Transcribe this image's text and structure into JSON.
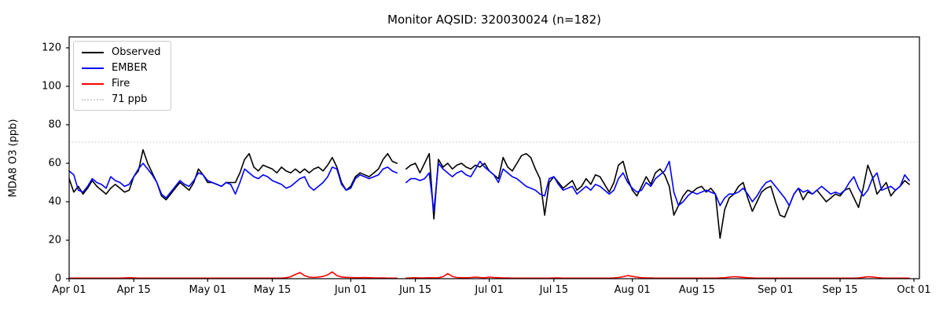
{
  "chart_data": {
    "type": "line",
    "title": "Monitor AQSID: 320030024 (n=182)",
    "ylabel": "MDA8 O3 (ppb)",
    "xlabel": "",
    "ylim": [
      0,
      125.7
    ],
    "x_days_total": 183,
    "x_start_date": "Apr 01",
    "x_end_date": "Oct 01",
    "grid": false,
    "legend_position": "upper-left",
    "threshold": {
      "label": "71 ppb",
      "value": 71,
      "color": "#d3d3d3",
      "style": "dotted"
    },
    "x_ticks": [
      {
        "label": "Apr 01",
        "day": 0
      },
      {
        "label": "Apr 15",
        "day": 14
      },
      {
        "label": "May 01",
        "day": 30
      },
      {
        "label": "May 15",
        "day": 44
      },
      {
        "label": "Jun 01",
        "day": 61
      },
      {
        "label": "Jun 15",
        "day": 75
      },
      {
        "label": "Jul 01",
        "day": 91
      },
      {
        "label": "Jul 15",
        "day": 105
      },
      {
        "label": "Aug 01",
        "day": 122
      },
      {
        "label": "Aug 15",
        "day": 136
      },
      {
        "label": "Sep 01",
        "day": 153
      },
      {
        "label": "Sep 15",
        "day": 167
      },
      {
        "label": "Oct 01",
        "day": 183
      }
    ],
    "y_ticks": [
      0,
      20,
      40,
      60,
      80,
      100,
      120
    ],
    "legend": [
      {
        "label": "Observed",
        "color": "#000000",
        "style": "solid"
      },
      {
        "label": "EMBER",
        "color": "#0000ff",
        "style": "solid"
      },
      {
        "label": "Fire",
        "color": "#ff0000",
        "style": "solid"
      },
      {
        "label": "71 ppb",
        "color": "#d3d3d3",
        "style": "dotted"
      }
    ],
    "series": [
      {
        "name": "Observed",
        "color": "#000000",
        "values": [
          52,
          45,
          48,
          44,
          47,
          51,
          48,
          46,
          44,
          47,
          49,
          47,
          45,
          46,
          53,
          56,
          67,
          60,
          55,
          50,
          43,
          41,
          44,
          47,
          50,
          48,
          46,
          50,
          57,
          54,
          50,
          50,
          49,
          48,
          50,
          50,
          50,
          55,
          62,
          65,
          58,
          56,
          59,
          58,
          57,
          55,
          58,
          56,
          55,
          57,
          55,
          57,
          55,
          57,
          58,
          56,
          59,
          63,
          58,
          50,
          46,
          48,
          53,
          55,
          54,
          53,
          55,
          57,
          62,
          65,
          61,
          60,
          null,
          57,
          59,
          60,
          55,
          60,
          65,
          31,
          62,
          58,
          60,
          57,
          59,
          60,
          58,
          57,
          59,
          58,
          60,
          56,
          54,
          52,
          63,
          58,
          56,
          60,
          64,
          65,
          63,
          57,
          52,
          33,
          50,
          53,
          50,
          47,
          49,
          51,
          46,
          48,
          52,
          49,
          54,
          53,
          49,
          45,
          50,
          59,
          61,
          52,
          46,
          43,
          48,
          53,
          49,
          55,
          57,
          54,
          48,
          33,
          38,
          43,
          46,
          45,
          47,
          48,
          45,
          47,
          44,
          21,
          36,
          42,
          44,
          48,
          50,
          42,
          35,
          40,
          45,
          47,
          48,
          40,
          33,
          32,
          38,
          44,
          47,
          41,
          45,
          44,
          46,
          43,
          40,
          42,
          44,
          43,
          46,
          47,
          42,
          37,
          47,
          59,
          53,
          44,
          47,
          50,
          43,
          46,
          48,
          51,
          49
        ]
      },
      {
        "name": "EMBER",
        "color": "#0000ff",
        "values": [
          56,
          54,
          46,
          45,
          48,
          52,
          50,
          49,
          47,
          53,
          51,
          50,
          48,
          49,
          53,
          57,
          60,
          57,
          54,
          50,
          44,
          42,
          45,
          48,
          51,
          49,
          48,
          51,
          55,
          54,
          51,
          50,
          49,
          48,
          50,
          49,
          44,
          50,
          57,
          55,
          53,
          52,
          54,
          53,
          51,
          50,
          49,
          47,
          48,
          50,
          52,
          53,
          48,
          46,
          48,
          50,
          53,
          58,
          57,
          49,
          46,
          47,
          52,
          54,
          53,
          52,
          53,
          54,
          57,
          58,
          56,
          55,
          null,
          50,
          52,
          52,
          51,
          52,
          55,
          35,
          60,
          57,
          55,
          53,
          55,
          56,
          54,
          53,
          57,
          61,
          58,
          56,
          54,
          50,
          57,
          55,
          53,
          52,
          50,
          48,
          47,
          46,
          44,
          43,
          52,
          53,
          49,
          46,
          47,
          48,
          44,
          46,
          48,
          46,
          49,
          48,
          46,
          44,
          46,
          52,
          55,
          50,
          47,
          45,
          46,
          50,
          48,
          52,
          54,
          56,
          61,
          45,
          38,
          40,
          43,
          45,
          44,
          45,
          46,
          45,
          44,
          38,
          42,
          44,
          44,
          45,
          47,
          44,
          40,
          43,
          47,
          50,
          51,
          48,
          45,
          42,
          38,
          44,
          47,
          45,
          46,
          44,
          46,
          48,
          46,
          44,
          45,
          44,
          46,
          50,
          53,
          47,
          43,
          46,
          52,
          55,
          46,
          47,
          48,
          46,
          48,
          54,
          51
        ]
      },
      {
        "name": "Fire",
        "color": "#ff0000",
        "values": [
          0.3,
          0.3,
          0.3,
          0.3,
          0.3,
          0.3,
          0.3,
          0.3,
          0.3,
          0.3,
          0.3,
          0.3,
          0.4,
          0.5,
          0.4,
          0.3,
          0.3,
          0.3,
          0.3,
          0.3,
          0.3,
          0.3,
          0.3,
          0.3,
          0.3,
          0.3,
          0.3,
          0.3,
          0.3,
          0.3,
          0.3,
          0.3,
          0.3,
          0.3,
          0.3,
          0.3,
          0.3,
          0.3,
          0.3,
          0.3,
          0.3,
          0.3,
          0.3,
          0.3,
          0.3,
          0.3,
          0.3,
          0.5,
          1.0,
          2.2,
          3.2,
          1.6,
          0.8,
          0.6,
          0.8,
          1.2,
          2.0,
          3.5,
          1.6,
          0.9,
          0.7,
          0.6,
          0.5,
          0.5,
          0.6,
          0.5,
          0.4,
          0.4,
          0.4,
          0.3,
          0.3,
          0.3,
          null,
          0.3,
          0.4,
          0.5,
          0.4,
          0.4,
          0.5,
          0.4,
          0.5,
          1.0,
          2.6,
          1.2,
          0.6,
          0.5,
          0.5,
          0.6,
          0.8,
          0.6,
          0.5,
          0.8,
          0.6,
          0.5,
          0.4,
          0.4,
          0.3,
          0.3,
          0.3,
          0.3,
          0.3,
          0.3,
          0.3,
          0.3,
          0.3,
          0.4,
          0.4,
          0.3,
          0.3,
          0.3,
          0.3,
          0.3,
          0.3,
          0.3,
          0.3,
          0.3,
          0.3,
          0.3,
          0.4,
          0.6,
          1.0,
          1.6,
          1.2,
          0.8,
          0.5,
          0.4,
          0.4,
          0.3,
          0.3,
          0.3,
          0.3,
          0.3,
          0.3,
          0.3,
          0.3,
          0.3,
          0.3,
          0.3,
          0.3,
          0.3,
          0.3,
          0.4,
          0.5,
          0.8,
          1.0,
          0.9,
          0.7,
          0.5,
          0.4,
          0.3,
          0.3,
          0.3,
          0.3,
          0.3,
          0.3,
          0.3,
          0.3,
          0.3,
          0.3,
          0.3,
          0.3,
          0.3,
          0.3,
          0.3,
          0.3,
          0.3,
          0.3,
          0.3,
          0.3,
          0.3,
          0.3,
          0.4,
          0.7,
          1.0,
          0.9,
          0.6,
          0.4,
          0.3,
          0.3,
          0.3,
          0.3,
          0.3,
          0.3
        ]
      }
    ]
  }
}
